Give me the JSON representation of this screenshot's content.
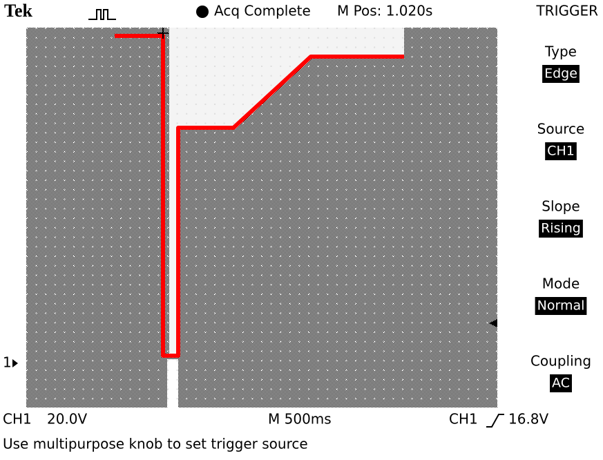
{
  "header": {
    "brand": "Tek",
    "acquisition": "Acq Complete",
    "position": "M Pos: 1.020s"
  },
  "menu": {
    "title": "TRIGGER",
    "items": [
      {
        "label": "Type",
        "value": "Edge"
      },
      {
        "label": "Source",
        "value": "CH1"
      },
      {
        "label": "Slope",
        "value": "Rising"
      },
      {
        "label": "Mode",
        "value": "Normal"
      },
      {
        "label": "Coupling",
        "value": "AC"
      }
    ]
  },
  "channel_marker": "1",
  "status": {
    "channel": "CH1",
    "scale": "20.0V",
    "timebase": "M 500ms",
    "trigger_channel": "CH1",
    "trigger_level": "16.8V"
  },
  "message": "Use multipurpose knob to set trigger source"
}
